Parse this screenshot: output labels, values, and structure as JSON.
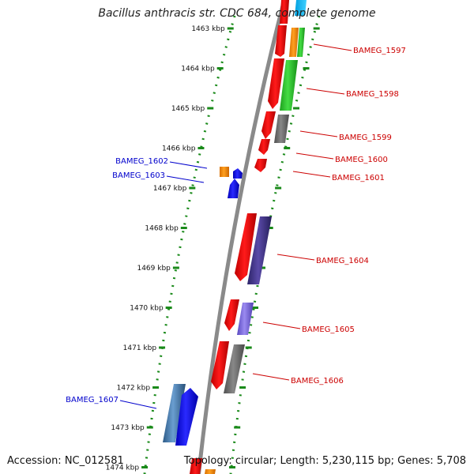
{
  "title": "Bacillus anthracis str. CDC 684, complete genome",
  "footer": {
    "accession": "Accession: NC_012581",
    "summary": "Topology: circular; Length: 5,230,115 bp; Genes: 5,708"
  },
  "colors": {
    "backbone": "#8a8a8a",
    "ticks": "#1a8a1a",
    "label_right": "#cc0000",
    "label_left": "#0000cc"
  },
  "ticks": [
    {
      "label": "1463 kbp"
    },
    {
      "label": "1464 kbp"
    },
    {
      "label": "1465 kbp"
    },
    {
      "label": "1466 kbp"
    },
    {
      "label": "1467 kbp"
    },
    {
      "label": "1468 kbp"
    },
    {
      "label": "1469 kbp"
    },
    {
      "label": "1470 kbp"
    },
    {
      "label": "1471 kbp"
    },
    {
      "label": "1472 kbp"
    },
    {
      "label": "1473 kbp"
    },
    {
      "label": "1474 kbp"
    }
  ],
  "genes_right": [
    {
      "name": "BAMEG_1597"
    },
    {
      "name": "BAMEG_1598"
    },
    {
      "name": "BAMEG_1599"
    },
    {
      "name": "BAMEG_1600"
    },
    {
      "name": "BAMEG_1601"
    },
    {
      "name": "BAMEG_1604"
    },
    {
      "name": "BAMEG_1605"
    },
    {
      "name": "BAMEG_1606"
    }
  ],
  "genes_left": [
    {
      "name": "BAMEG_1602"
    },
    {
      "name": "BAMEG_1603"
    },
    {
      "name": "BAMEG_1607"
    }
  ]
}
